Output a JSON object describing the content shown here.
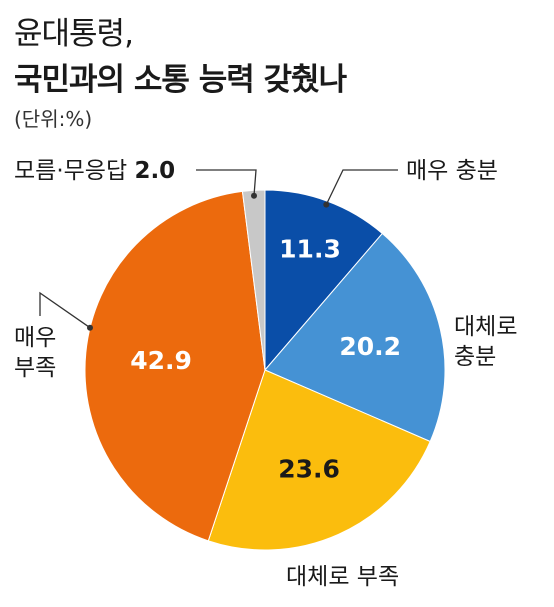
{
  "header": {
    "title_line1": "윤대통령,",
    "title_line2": "국민과의 소통 능력 갖췄나",
    "unit": "(단위:%)"
  },
  "chart_data": {
    "type": "pie",
    "title": "윤대통령, 국민과의 소통 능력 갖췄나",
    "unit": "(단위:%)",
    "slices": [
      {
        "label": "매우 충분",
        "value": 11.3,
        "color": "#0a4ea8",
        "value_color": "#ffffff"
      },
      {
        "label": "대체로 충분",
        "value": 20.2,
        "color": "#4592d4",
        "value_color": "#ffffff"
      },
      {
        "label": "대체로 부족",
        "value": 23.6,
        "color": "#fbbd0d",
        "value_color": "#1a1a1a"
      },
      {
        "label": "매우 부족",
        "value": 42.9,
        "color": "#ec6a0d",
        "value_color": "#ffffff"
      },
      {
        "label": "모름·무응답",
        "value": 2.0,
        "color": "#c8c8c8",
        "value_color": "#1a1a1a"
      }
    ],
    "start": "12 o'clock",
    "direction": "clockwise"
  }
}
